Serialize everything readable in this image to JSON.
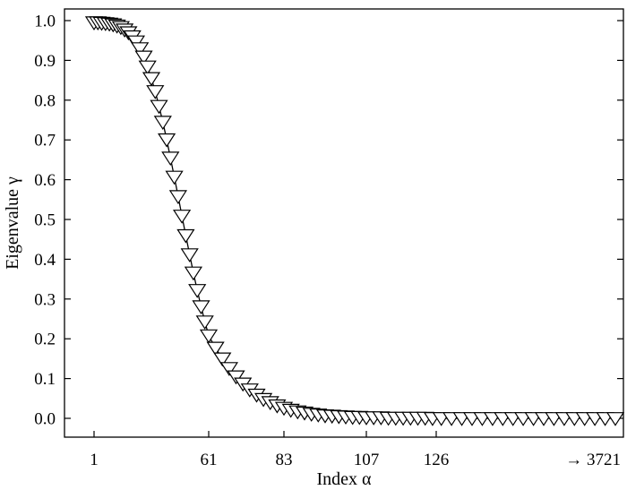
{
  "chart_data": {
    "type": "line",
    "marker": "triangle-down",
    "xlabel": "Index α",
    "ylabel": "Eigenvalue γ",
    "ylim": [
      -0.05,
      1.02
    ],
    "yticks": [
      0.0,
      0.1,
      0.2,
      0.3,
      0.4,
      0.5,
      0.6,
      0.7,
      0.8,
      0.9,
      1.0
    ],
    "ytick_labels": [
      "0.0",
      "0.1",
      "0.2",
      "0.3",
      "0.4",
      "0.5",
      "0.6",
      "0.7",
      "0.8",
      "0.9",
      "1.0"
    ],
    "xticks": [
      1,
      61,
      83,
      107,
      126
    ],
    "xtick_labels": [
      "1",
      "61",
      "83",
      "107",
      "126"
    ],
    "x_axis_end_label": "→ 3721",
    "grid": false,
    "series": [
      {
        "color": "#000000",
        "x": [
          1,
          3,
          5,
          7,
          9,
          11,
          13,
          15,
          17,
          19,
          21,
          23,
          25,
          27,
          29,
          31,
          33,
          35,
          37,
          39,
          41,
          43,
          45,
          47,
          49,
          51,
          53,
          55,
          57,
          59,
          61,
          63,
          65,
          67,
          69,
          71,
          73,
          75,
          77,
          79,
          81,
          83,
          85,
          87,
          89,
          91,
          93,
          95,
          97,
          99,
          101,
          103,
          105,
          107,
          109,
          111,
          113,
          115,
          117,
          119,
          121,
          123,
          125,
          127,
          129,
          131,
          133,
          135,
          137,
          139,
          141,
          143,
          145,
          147,
          149,
          151,
          153,
          155,
          157,
          159,
          161
        ],
        "y": [
          0.995,
          0.995,
          0.994,
          0.993,
          0.992,
          0.99,
          0.987,
          0.983,
          0.977,
          0.97,
          0.96,
          0.947,
          0.93,
          0.909,
          0.884,
          0.855,
          0.822,
          0.785,
          0.745,
          0.701,
          0.655,
          0.607,
          0.558,
          0.509,
          0.46,
          0.412,
          0.366,
          0.322,
          0.281,
          0.243,
          0.208,
          0.177,
          0.15,
          0.126,
          0.105,
          0.087,
          0.072,
          0.059,
          0.048,
          0.04,
          0.032,
          0.026,
          0.021,
          0.017,
          0.014,
          0.011,
          0.009,
          0.007,
          0.006,
          0.005,
          0.004,
          0.003,
          0.003,
          0.002,
          0.002,
          0.002,
          0.001,
          0.001,
          0.001,
          0.001,
          0.001,
          0.001,
          0.0,
          0.0,
          0.0,
          0.0,
          0.0,
          0.0,
          0.0,
          0.0,
          0.0,
          0.0,
          0.0,
          0.0,
          0.0,
          0.0,
          0.0,
          0.0,
          0.0,
          0.0,
          0.0
        ]
      }
    ]
  }
}
